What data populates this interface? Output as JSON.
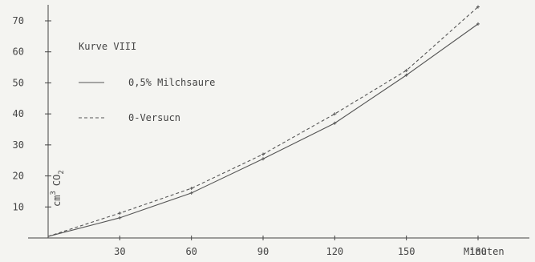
{
  "chart_data": {
    "type": "line",
    "title": "Kurve VIII",
    "xlabel": "Minuten",
    "ylabel": "cm³ CO₂",
    "ylabel_main": "cm",
    "ylabel_sup": "3",
    "ylabel_co": "CO",
    "ylabel_sub": "2",
    "x": [
      0,
      30,
      60,
      90,
      120,
      150,
      180
    ],
    "x_tick_labels": [
      "30",
      "60",
      "90",
      "120",
      "150",
      "180"
    ],
    "y_tick_labels": [
      "10",
      "20",
      "30",
      "40",
      "50",
      "60",
      "70"
    ],
    "xlim": [
      0,
      180
    ],
    "ylim": [
      0,
      75
    ],
    "grid": false,
    "legend_position": "top-left",
    "series": [
      {
        "name": "0,5% Milchsaure",
        "style": "solid",
        "values": [
          0.5,
          6.5,
          14.5,
          25.5,
          37,
          52.5,
          69
        ]
      },
      {
        "name": "0-Versucn",
        "style": "dashed",
        "values": [
          0.5,
          8,
          16,
          27,
          40,
          54,
          74.5
        ]
      }
    ]
  }
}
